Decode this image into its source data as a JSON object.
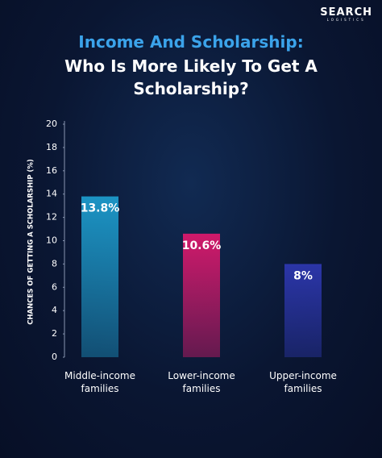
{
  "brand": {
    "name": "SEARCH",
    "tagline": "LOGISTICS"
  },
  "chart_data": {
    "type": "bar",
    "title": "Income And Scholarship:",
    "subtitle": "Who Is More Likely To Get A Scholarship?",
    "ylabel": "CHANCES OF GETTING A SCHOLARSHIP (%)",
    "categories": [
      "Middle-income families",
      "Lower-income families",
      "Upper-income families"
    ],
    "values": [
      13.8,
      10.6,
      8
    ],
    "value_labels": [
      "13.8%",
      "10.6%",
      "8%"
    ],
    "colors": [
      "#1c94c4",
      "#d0196a",
      "#2b35a8"
    ],
    "ylim": [
      0,
      20
    ],
    "yticks": [
      0,
      2,
      4,
      6,
      8,
      10,
      12,
      14,
      16,
      18,
      20
    ],
    "grid": false
  }
}
